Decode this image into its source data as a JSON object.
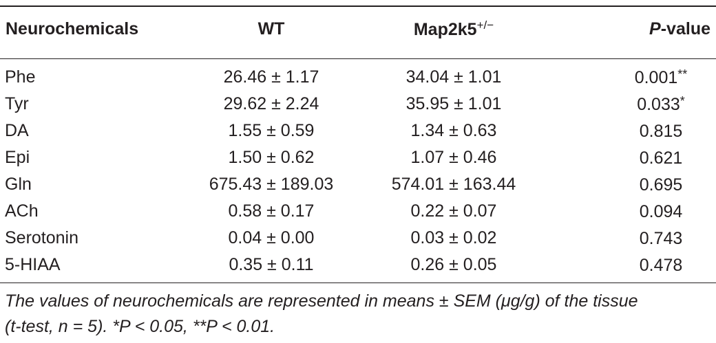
{
  "table": {
    "headers": {
      "name": "Neurochemicals",
      "wt": "WT",
      "map_base": "Map2k5",
      "map_super": "+/−",
      "p_italic": "P",
      "p_rest": "-value"
    },
    "rows": [
      {
        "name": "Phe",
        "wt": "26.46 ± 1.17",
        "map": "34.04 ± 1.01",
        "p": "0.001",
        "stars": "**"
      },
      {
        "name": "Tyr",
        "wt": "29.62 ± 2.24",
        "map": "35.95 ± 1.01",
        "p": "0.033",
        "stars": "*"
      },
      {
        "name": "DA",
        "wt": "1.55 ± 0.59",
        "map": "1.34 ± 0.63",
        "p": "0.815",
        "stars": ""
      },
      {
        "name": "Epi",
        "wt": "1.50 ± 0.62",
        "map": "1.07 ± 0.46",
        "p": "0.621",
        "stars": ""
      },
      {
        "name": "Gln",
        "wt": "675.43 ± 189.03",
        "map": "574.01 ± 163.44",
        "p": "0.695",
        "stars": ""
      },
      {
        "name": "ACh",
        "wt": "0.58 ± 0.17",
        "map": "0.22 ± 0.07",
        "p": "0.094",
        "stars": ""
      },
      {
        "name": "Serotonin",
        "wt": "0.04 ± 0.00",
        "map": "0.03 ± 0.02",
        "p": "0.743",
        "stars": ""
      },
      {
        "name": "5-HIAA",
        "wt": "0.35 ± 0.11",
        "map": "0.26 ± 0.05",
        "p": "0.478",
        "stars": ""
      }
    ]
  },
  "footnote": {
    "line1": "The values of neurochemicals are represented in means ± SEM (μg/g) of the tissue",
    "line2": "(t-test, n = 5). *P < 0.05, **P < 0.01."
  }
}
